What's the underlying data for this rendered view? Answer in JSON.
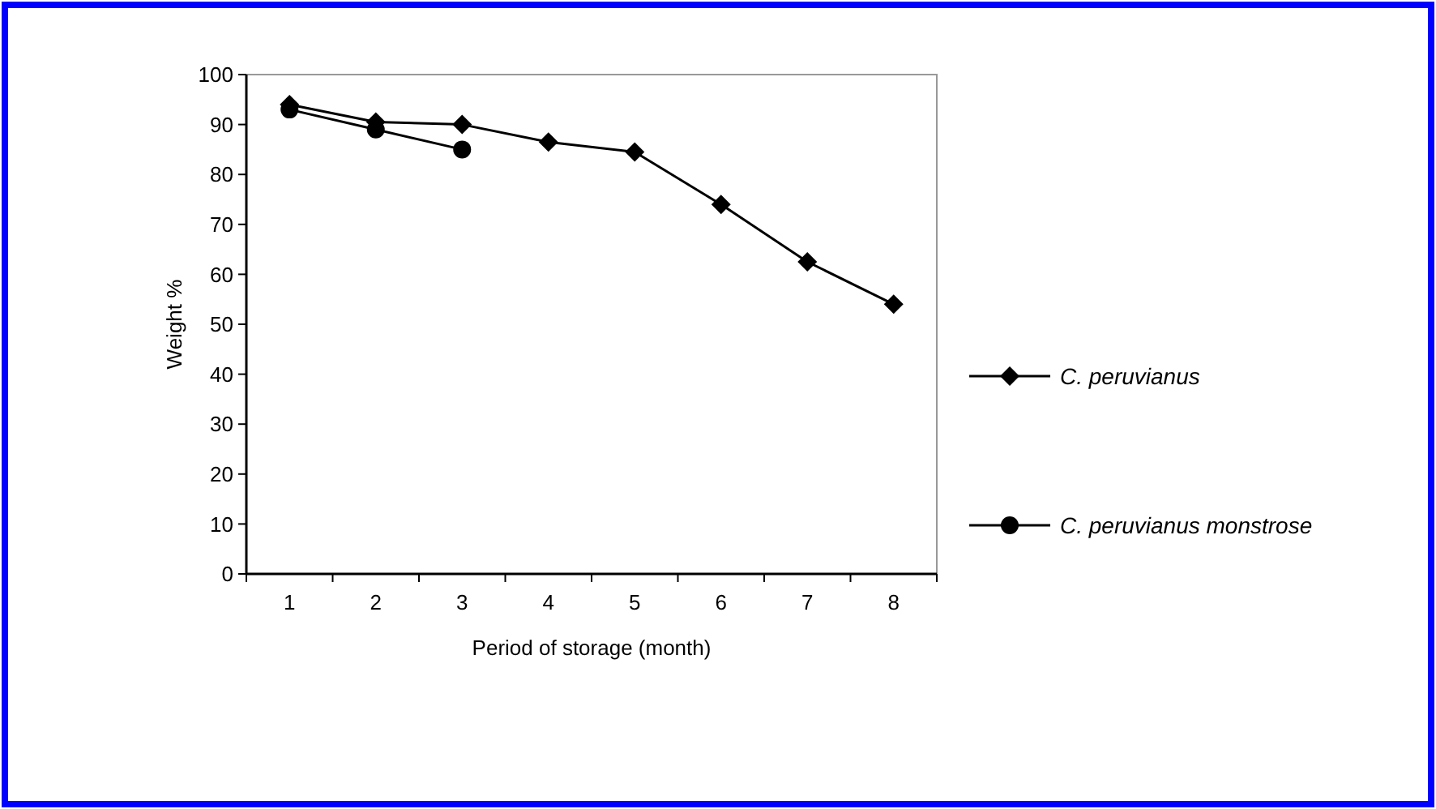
{
  "chart_data": {
    "type": "line",
    "xlabel": "Period of storage (month)",
    "ylabel": "Weight %",
    "categories": [
      "1",
      "2",
      "3",
      "4",
      "5",
      "6",
      "7",
      "8"
    ],
    "ylim": [
      0,
      100
    ],
    "yticks": [
      0,
      10,
      20,
      30,
      40,
      50,
      60,
      70,
      80,
      90,
      100
    ],
    "grid": false,
    "legend": "right",
    "line_style": "solid",
    "series": [
      {
        "name": "C. peruvianus",
        "color": "#000000",
        "marker": "diamond",
        "values": [
          94,
          90.5,
          90,
          86.5,
          84.5,
          74,
          62.5,
          54
        ]
      },
      {
        "name": "C. peruvianus monstrose",
        "color": "#000000",
        "marker": "circle",
        "values": [
          93,
          89,
          85,
          null,
          null,
          null,
          null,
          null
        ]
      }
    ]
  }
}
